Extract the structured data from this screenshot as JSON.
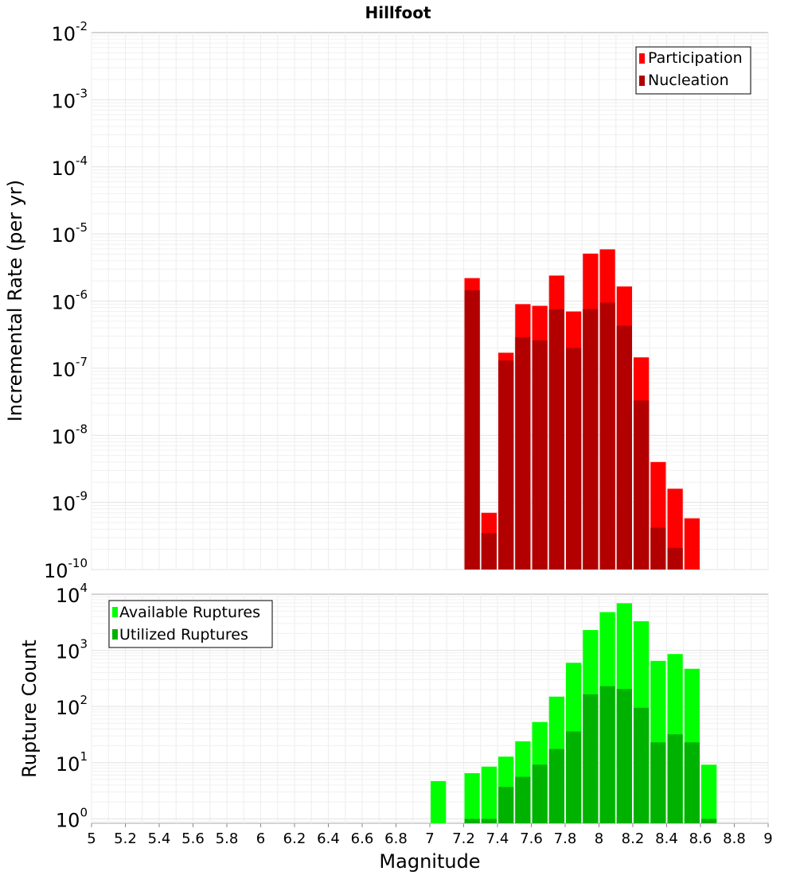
{
  "chart_data": [
    {
      "type": "bar",
      "title": "Hillfoot",
      "xlabel": "Magnitude",
      "ylabel": "Incremental Rate (per yr)",
      "xlim": [
        5,
        9
      ],
      "ylim_log10": [
        -10,
        -2
      ],
      "y_scale": "log",
      "y_tick_exponents": [
        "-10",
        "-9",
        "-8",
        "-7",
        "-6",
        "-5",
        "-4",
        "-3",
        "-2"
      ],
      "bin_width": 0.1,
      "legend_position": "top-right",
      "series": [
        {
          "name": "Participation",
          "color": "#ff0000",
          "x": [
            7.25,
            7.35,
            7.45,
            7.55,
            7.65,
            7.75,
            7.85,
            7.95,
            8.05,
            8.15,
            8.25,
            8.35,
            8.45,
            8.55
          ],
          "values": [
            2.2e-06,
            7e-10,
            1.7e-07,
            9e-07,
            8.5e-07,
            2.4e-06,
            7e-07,
            5.1e-06,
            5.9e-06,
            1.65e-06,
            1.45e-07,
            4e-09,
            1.6e-09,
            5.8e-10
          ]
        },
        {
          "name": "Nucleation",
          "color": "#b20000",
          "x": [
            7.25,
            7.35,
            7.45,
            7.55,
            7.65,
            7.75,
            7.85,
            7.95,
            8.05,
            8.15,
            8.25,
            8.35,
            8.45
          ],
          "values": [
            1.45e-06,
            3.5e-10,
            1.3e-07,
            2.9e-07,
            2.6e-07,
            7.5e-07,
            2e-07,
            7.6e-07,
            9.5e-07,
            4.3e-07,
            3.3e-08,
            4.2e-10,
            2.1e-10
          ]
        }
      ]
    },
    {
      "type": "bar",
      "title": "",
      "xlabel": "Magnitude",
      "ylabel": "Rupture Count",
      "xlim": [
        5,
        9
      ],
      "ylim_log10": [
        -0.08,
        4
      ],
      "y_scale": "log",
      "y_tick_exponents": [
        "0",
        "1",
        "2",
        "3",
        "4"
      ],
      "x_tick_labels": [
        "5",
        "5.2",
        "5.4",
        "5.6",
        "5.8",
        "6",
        "6.2",
        "6.4",
        "6.6",
        "6.8",
        "7",
        "7.2",
        "7.4",
        "7.6",
        "7.8",
        "8",
        "8.2",
        "8.4",
        "8.6",
        "8.8",
        "9"
      ],
      "bin_width": 0.1,
      "legend_position": "top-left",
      "series": [
        {
          "name": "Available Ruptures",
          "color": "#00ff00",
          "x": [
            7.05,
            7.25,
            7.35,
            7.45,
            7.55,
            7.65,
            7.75,
            7.85,
            7.95,
            8.05,
            8.15,
            8.25,
            8.35,
            8.45,
            8.55,
            8.65
          ],
          "values": [
            4.7,
            6.5,
            8.5,
            12.8,
            24,
            53,
            150,
            600,
            2300,
            4800,
            6900,
            3300,
            650,
            860,
            470,
            9.2
          ]
        },
        {
          "name": "Utilized Ruptures",
          "color": "#00b200",
          "x": [
            7.25,
            7.35,
            7.45,
            7.55,
            7.65,
            7.75,
            7.85,
            7.95,
            8.05,
            8.15,
            8.25,
            8.35,
            8.45,
            8.55,
            8.65
          ],
          "values": [
            1,
            1,
            3.7,
            5.6,
            9.2,
            17.5,
            36,
            165,
            230,
            205,
            95,
            23,
            32,
            23,
            1
          ]
        }
      ]
    }
  ]
}
